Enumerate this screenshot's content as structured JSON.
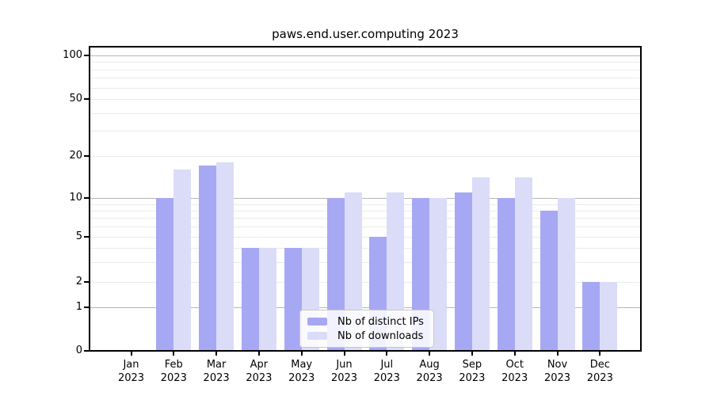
{
  "title": "paws.end.user.computing 2023",
  "legend": {
    "position": "bottom-center",
    "items": [
      {
        "label": "Nb of distinct IPs",
        "color": "#a7a8f3"
      },
      {
        "label": "Nb of downloads",
        "color": "#dbdcf8"
      }
    ]
  },
  "axes": {
    "y_tick_labels": [
      "100",
      "50",
      "20",
      "10",
      "5",
      "2",
      "1",
      "0"
    ],
    "x_tick_labels": [
      "Jan 2023",
      "Feb 2023",
      "Mar 2023",
      "Apr 2023",
      "May 2023",
      "Jun 2023",
      "Jul 2023",
      "Aug 2023",
      "Sep 2023",
      "Oct 2023",
      "Nov 2023",
      "Dec 2023"
    ]
  },
  "chart_data": {
    "type": "bar",
    "title": "paws.end.user.computing 2023",
    "categories": [
      "Jan 2023",
      "Feb 2023",
      "Mar 2023",
      "Apr 2023",
      "May 2023",
      "Jun 2023",
      "Jul 2023",
      "Aug 2023",
      "Sep 2023",
      "Oct 2023",
      "Nov 2023",
      "Dec 2023"
    ],
    "series": [
      {
        "name": "Nb of distinct IPs",
        "color": "#a7a8f3",
        "values": [
          0,
          10,
          17,
          4,
          4,
          10,
          5,
          10,
          11,
          10,
          8,
          2
        ]
      },
      {
        "name": "Nb of downloads",
        "color": "#dbdcf8",
        "values": [
          0,
          16,
          18,
          4,
          4,
          11,
          11,
          10,
          14,
          14,
          10,
          2
        ]
      }
    ],
    "xlabel": "",
    "ylabel": "",
    "yscale": "log",
    "yticks": [
      0,
      1,
      2,
      5,
      10,
      20,
      50,
      100
    ],
    "ylim": [
      0,
      115
    ],
    "grid": "horizontal, major and minor",
    "legend_position": "lower center"
  }
}
